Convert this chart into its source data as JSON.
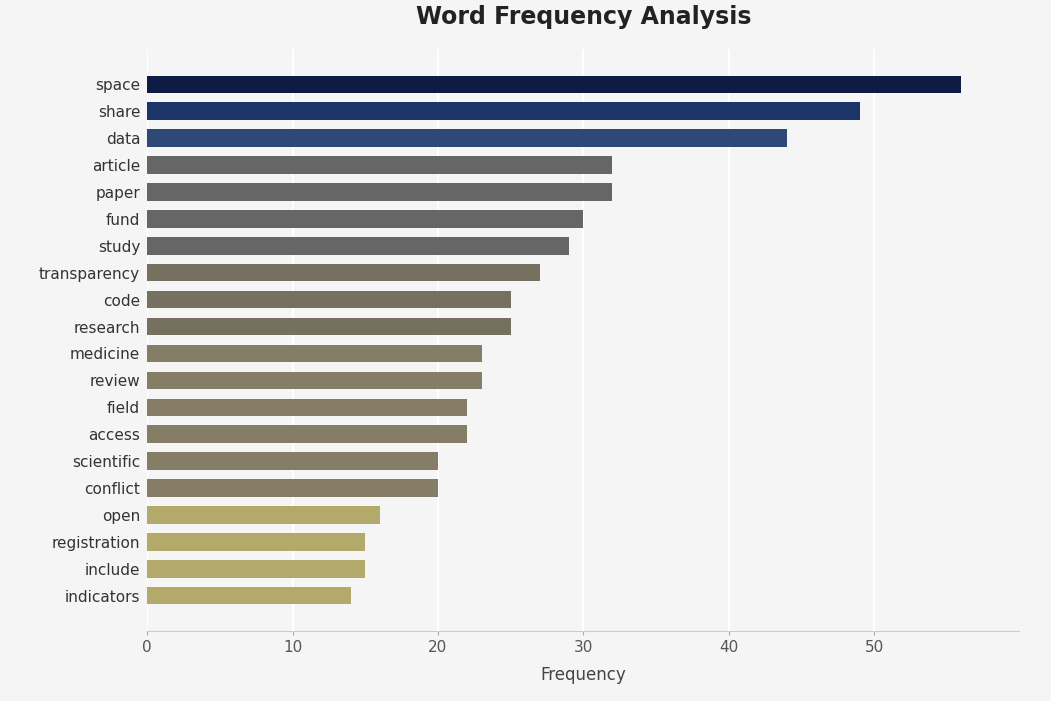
{
  "title": "Word Frequency Analysis",
  "xlabel": "Frequency",
  "categories": [
    "space",
    "share",
    "data",
    "article",
    "paper",
    "fund",
    "study",
    "transparency",
    "code",
    "research",
    "medicine",
    "review",
    "field",
    "access",
    "scientific",
    "conflict",
    "open",
    "registration",
    "include",
    "indicators"
  ],
  "values": [
    56,
    49,
    44,
    32,
    32,
    30,
    29,
    27,
    25,
    25,
    23,
    23,
    22,
    22,
    20,
    20,
    16,
    15,
    15,
    14
  ],
  "bar_colors": [
    "#0d1b45",
    "#1b3568",
    "#2e4878",
    "#666666",
    "#666666",
    "#666666",
    "#666666",
    "#757060",
    "#757060",
    "#757060",
    "#857d65",
    "#857d65",
    "#857d65",
    "#857d65",
    "#857d65",
    "#857d65",
    "#b3a96b",
    "#b3a96b",
    "#b3a96b",
    "#b3a96b"
  ],
  "xlim": [
    0,
    60
  ],
  "xticks": [
    0,
    10,
    20,
    30,
    40,
    50
  ],
  "background_color": "#f5f5f5",
  "plot_background": "#f5f5f5",
  "title_fontsize": 17,
  "label_fontsize": 12,
  "tick_fontsize": 11,
  "bar_height": 0.65
}
